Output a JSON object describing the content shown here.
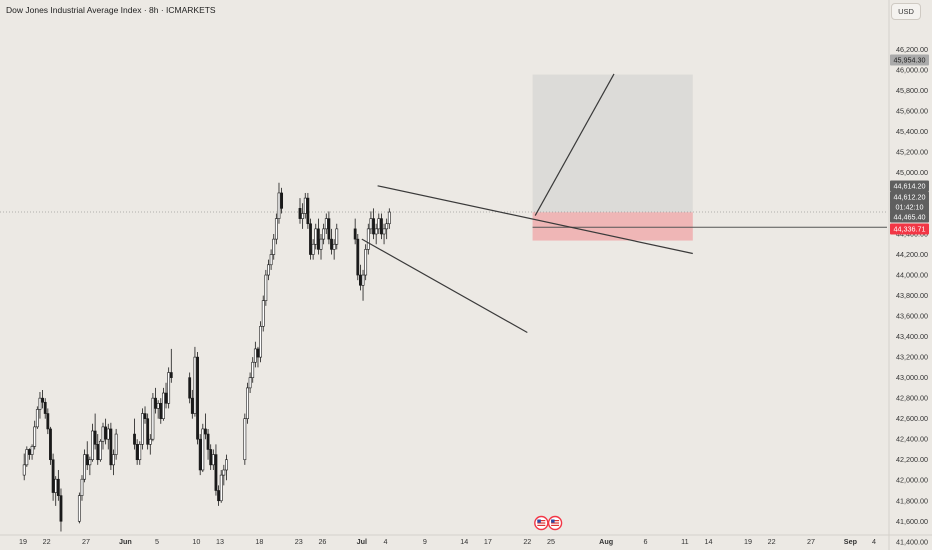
{
  "header": {
    "title": "Dow Jones Industrial Average Index · 8h · ICMARKETS"
  },
  "toolbar": {
    "currency": "USD"
  },
  "colors": {
    "background": "#ece9e4",
    "candle_up": "#ffffff",
    "candle_down": "#1a1a1a",
    "target_zone": "#dcdbd8",
    "stop_zone": "#efb6b6",
    "badge_dark": "#5f5f5f",
    "badge_red": "#f23645",
    "badge_target": "#aaaaaa"
  },
  "icons": [
    "us-flag-icon",
    "us-flag-icon"
  ],
  "chart_data": {
    "type": "candlestick",
    "title": "Dow Jones Industrial Average Index · 8h · ICMARKETS",
    "ylim": [
      41300,
      46350
    ],
    "y_ticks": [
      41400,
      41600,
      41800,
      42000,
      42200,
      42400,
      42600,
      42800,
      43000,
      43200,
      43400,
      43600,
      43800,
      44000,
      44200,
      44400,
      44600,
      44800,
      45000,
      45200,
      45400,
      45600,
      45800,
      46000,
      46200
    ],
    "x_ticks": [
      {
        "label": "19",
        "date": "2025-05-19"
      },
      {
        "label": "22",
        "date": "2025-05-22"
      },
      {
        "label": "27",
        "date": "2025-05-27"
      },
      {
        "label": "Jun",
        "date": "2025-06-01"
      },
      {
        "label": "5",
        "date": "2025-06-05"
      },
      {
        "label": "10",
        "date": "2025-06-10"
      },
      {
        "label": "13",
        "date": "2025-06-13"
      },
      {
        "label": "18",
        "date": "2025-06-18"
      },
      {
        "label": "23",
        "date": "2025-06-23"
      },
      {
        "label": "26",
        "date": "2025-06-26"
      },
      {
        "label": "Jul",
        "date": "2025-07-01"
      },
      {
        "label": "4",
        "date": "2025-07-04"
      },
      {
        "label": "9",
        "date": "2025-07-09"
      },
      {
        "label": "14",
        "date": "2025-07-14"
      },
      {
        "label": "17",
        "date": "2025-07-17"
      },
      {
        "label": "22",
        "date": "2025-07-22"
      },
      {
        "label": "25",
        "date": "2025-07-25"
      },
      {
        "label": "Aug",
        "date": "2025-08-01"
      },
      {
        "label": "6",
        "date": "2025-08-06"
      },
      {
        "label": "11",
        "date": "2025-08-11"
      },
      {
        "label": "14",
        "date": "2025-08-14"
      },
      {
        "label": "19",
        "date": "2025-08-19"
      },
      {
        "label": "22",
        "date": "2025-08-22"
      },
      {
        "label": "27",
        "date": "2025-08-27"
      },
      {
        "label": "Sep",
        "date": "2025-09-01"
      },
      {
        "label": "4",
        "date": "2025-09-04"
      }
    ],
    "price_labels": [
      {
        "text": "45,954.30",
        "value": 45954.3,
        "style": "target"
      },
      {
        "text": "44,614.20",
        "value": 44614.2,
        "style": "dark"
      },
      {
        "text": "44,612.20",
        "value": 44612.2,
        "style": "dark"
      },
      {
        "text": "01:42:10",
        "value": 44518,
        "style": "dark"
      },
      {
        "text": "44,465.40",
        "value": 44465.4,
        "style": "dark"
      },
      {
        "text": "44,336.71",
        "value": 44336.71,
        "style": "red"
      }
    ],
    "target_zone": {
      "x_start": "2025-07-22 16:00",
      "x_end": "2025-08-12",
      "y_low": 44612,
      "y_high": 45954
    },
    "stop_zone": {
      "x_start": "2025-07-22 16:00",
      "x_end": "2025-08-12",
      "y_low": 44336,
      "y_high": 44612
    },
    "trendlines": [
      {
        "name": "upper",
        "points": [
          [
            "2025-07-03",
            44870
          ],
          [
            "2025-08-12",
            44210
          ]
        ]
      },
      {
        "name": "lower",
        "points": [
          [
            "2025-07-01",
            44350
          ],
          [
            "2025-07-22",
            43440
          ]
        ]
      },
      {
        "name": "projection",
        "points": [
          [
            "2025-07-23",
            44580
          ],
          [
            "2025-08-02",
            45960
          ]
        ]
      }
    ],
    "horizontal_lines": [
      {
        "value": 44614.2,
        "style": "dotted"
      },
      {
        "value": 44465.4,
        "style": "solid"
      }
    ],
    "series": [
      {
        "name": "",
        "candles": [
          [
            42050,
            42260,
            42000,
            42150
          ],
          [
            42150,
            42330,
            42130,
            42300
          ],
          [
            42300,
            42310,
            42200,
            42250
          ],
          [
            42250,
            42350,
            42200,
            42330
          ],
          [
            42330,
            42580,
            42300,
            42520
          ],
          [
            42520,
            42720,
            42500,
            42690
          ],
          [
            42690,
            42860,
            42600,
            42800
          ],
          [
            42800,
            42880,
            42700,
            42760
          ],
          [
            42760,
            42800,
            42600,
            42650
          ],
          [
            42650,
            42700,
            42450,
            42500
          ],
          [
            42500,
            42520,
            42150,
            42200
          ],
          [
            42200,
            42260,
            41800,
            41880
          ],
          [
            41880,
            42040,
            41750,
            42010
          ],
          [
            42010,
            42100,
            41800,
            41850
          ],
          [
            41850,
            41920,
            41500,
            41600
          ],
          [
            41600,
            41880,
            41580,
            41850
          ],
          [
            41850,
            42050,
            41800,
            42010
          ],
          [
            42010,
            42300,
            41980,
            42250
          ],
          [
            42250,
            42380,
            42100,
            42150
          ],
          [
            42150,
            42230,
            42050,
            42200
          ],
          [
            42200,
            42550,
            42180,
            42480
          ],
          [
            42480,
            42650,
            42300,
            42350
          ],
          [
            42350,
            42450,
            42150,
            42200
          ],
          [
            42200,
            42400,
            42180,
            42380
          ],
          [
            42380,
            42560,
            42300,
            42520
          ],
          [
            42520,
            42600,
            42350,
            42400
          ],
          [
            42400,
            42550,
            42300,
            42500
          ],
          [
            42500,
            42560,
            42100,
            42150
          ],
          [
            42150,
            42300,
            42050,
            42250
          ],
          [
            42250,
            42500,
            42200,
            42450
          ],
          [
            42450,
            42600,
            42300,
            42350
          ],
          [
            42350,
            42400,
            42150,
            42200
          ],
          [
            42200,
            42380,
            42150,
            42350
          ],
          [
            42350,
            42700,
            42300,
            42650
          ],
          [
            42650,
            42720,
            42550,
            42600
          ],
          [
            42600,
            42650,
            42300,
            42350
          ],
          [
            42350,
            42450,
            42250,
            42400
          ],
          [
            42400,
            42850,
            42380,
            42800
          ],
          [
            42800,
            42900,
            42650,
            42700
          ],
          [
            42700,
            42780,
            42600,
            42750
          ],
          [
            42750,
            42800,
            42550,
            42600
          ],
          [
            42600,
            42900,
            42580,
            42850
          ],
          [
            42850,
            42950,
            42700,
            42750
          ],
          [
            42750,
            43100,
            42700,
            43050
          ],
          [
            43050,
            43280,
            42950,
            43000
          ],
          [
            43000,
            43050,
            42750,
            42800
          ],
          [
            42800,
            42880,
            42600,
            42650
          ],
          [
            42650,
            43300,
            42620,
            43200
          ],
          [
            43200,
            43250,
            42350,
            42400
          ],
          [
            42400,
            42450,
            42050,
            42100
          ],
          [
            42100,
            42550,
            42080,
            42500
          ],
          [
            42500,
            42650,
            42400,
            42450
          ],
          [
            42450,
            42500,
            42200,
            42300
          ],
          [
            42300,
            42350,
            42100,
            42150
          ],
          [
            42150,
            42300,
            42100,
            42250
          ],
          [
            42250,
            42350,
            41850,
            41900
          ],
          [
            41900,
            41950,
            41750,
            41800
          ],
          [
            41800,
            42100,
            41780,
            42050
          ],
          [
            42050,
            42150,
            41950,
            42100
          ],
          [
            42100,
            42250,
            42000,
            42200
          ],
          [
            42200,
            42650,
            42150,
            42600
          ],
          [
            42600,
            42950,
            42550,
            42900
          ],
          [
            42900,
            43050,
            42850,
            43000
          ],
          [
            43000,
            43200,
            42950,
            43150
          ],
          [
            43150,
            43350,
            43100,
            43280
          ],
          [
            43280,
            43300,
            43100,
            43200
          ],
          [
            43200,
            43550,
            43150,
            43500
          ],
          [
            43500,
            43800,
            43450,
            43750
          ],
          [
            43750,
            44050,
            43700,
            44000
          ],
          [
            44000,
            44150,
            43950,
            44100
          ],
          [
            44100,
            44250,
            44050,
            44200
          ],
          [
            44200,
            44400,
            44150,
            44350
          ],
          [
            44350,
            44600,
            44300,
            44550
          ],
          [
            44550,
            44900,
            44500,
            44800
          ],
          [
            44800,
            44850,
            44600,
            44650
          ],
          [
            44650,
            44750,
            44500,
            44550
          ],
          [
            44550,
            44700,
            44450,
            44600
          ],
          [
            44600,
            44800,
            44550,
            44750
          ],
          [
            44750,
            44800,
            44450,
            44500
          ],
          [
            44500,
            44550,
            44150,
            44200
          ],
          [
            44200,
            44350,
            44150,
            44300
          ],
          [
            44300,
            44500,
            44250,
            44450
          ],
          [
            44450,
            44550,
            44200,
            44250
          ],
          [
            44250,
            44400,
            44150,
            44350
          ],
          [
            44350,
            44500,
            44300,
            44450
          ],
          [
            44450,
            44600,
            44400,
            44550
          ],
          [
            44550,
            44620,
            44300,
            44350
          ],
          [
            44350,
            44450,
            44200,
            44250
          ],
          [
            44250,
            44350,
            44150,
            44300
          ],
          [
            44300,
            44500,
            44250,
            44450
          ],
          [
            44450,
            44550,
            44300,
            44350
          ],
          [
            44350,
            44400,
            43950,
            44000
          ],
          [
            44000,
            44100,
            43850,
            43900
          ],
          [
            43900,
            44050,
            43750,
            44000
          ],
          [
            44000,
            44300,
            43950,
            44250
          ],
          [
            44250,
            44500,
            44200,
            44450
          ],
          [
            44450,
            44620,
            44400,
            44550
          ],
          [
            44550,
            44650,
            44350,
            44400
          ],
          [
            44400,
            44500,
            44300,
            44450
          ],
          [
            44450,
            44600,
            44400,
            44550
          ],
          [
            44550,
            44600,
            44350,
            44400
          ],
          [
            44400,
            44500,
            44300,
            44450
          ],
          [
            44450,
            44550,
            44350,
            44500
          ],
          [
            44500,
            44650,
            44450,
            44614
          ]
        ]
      }
    ]
  }
}
